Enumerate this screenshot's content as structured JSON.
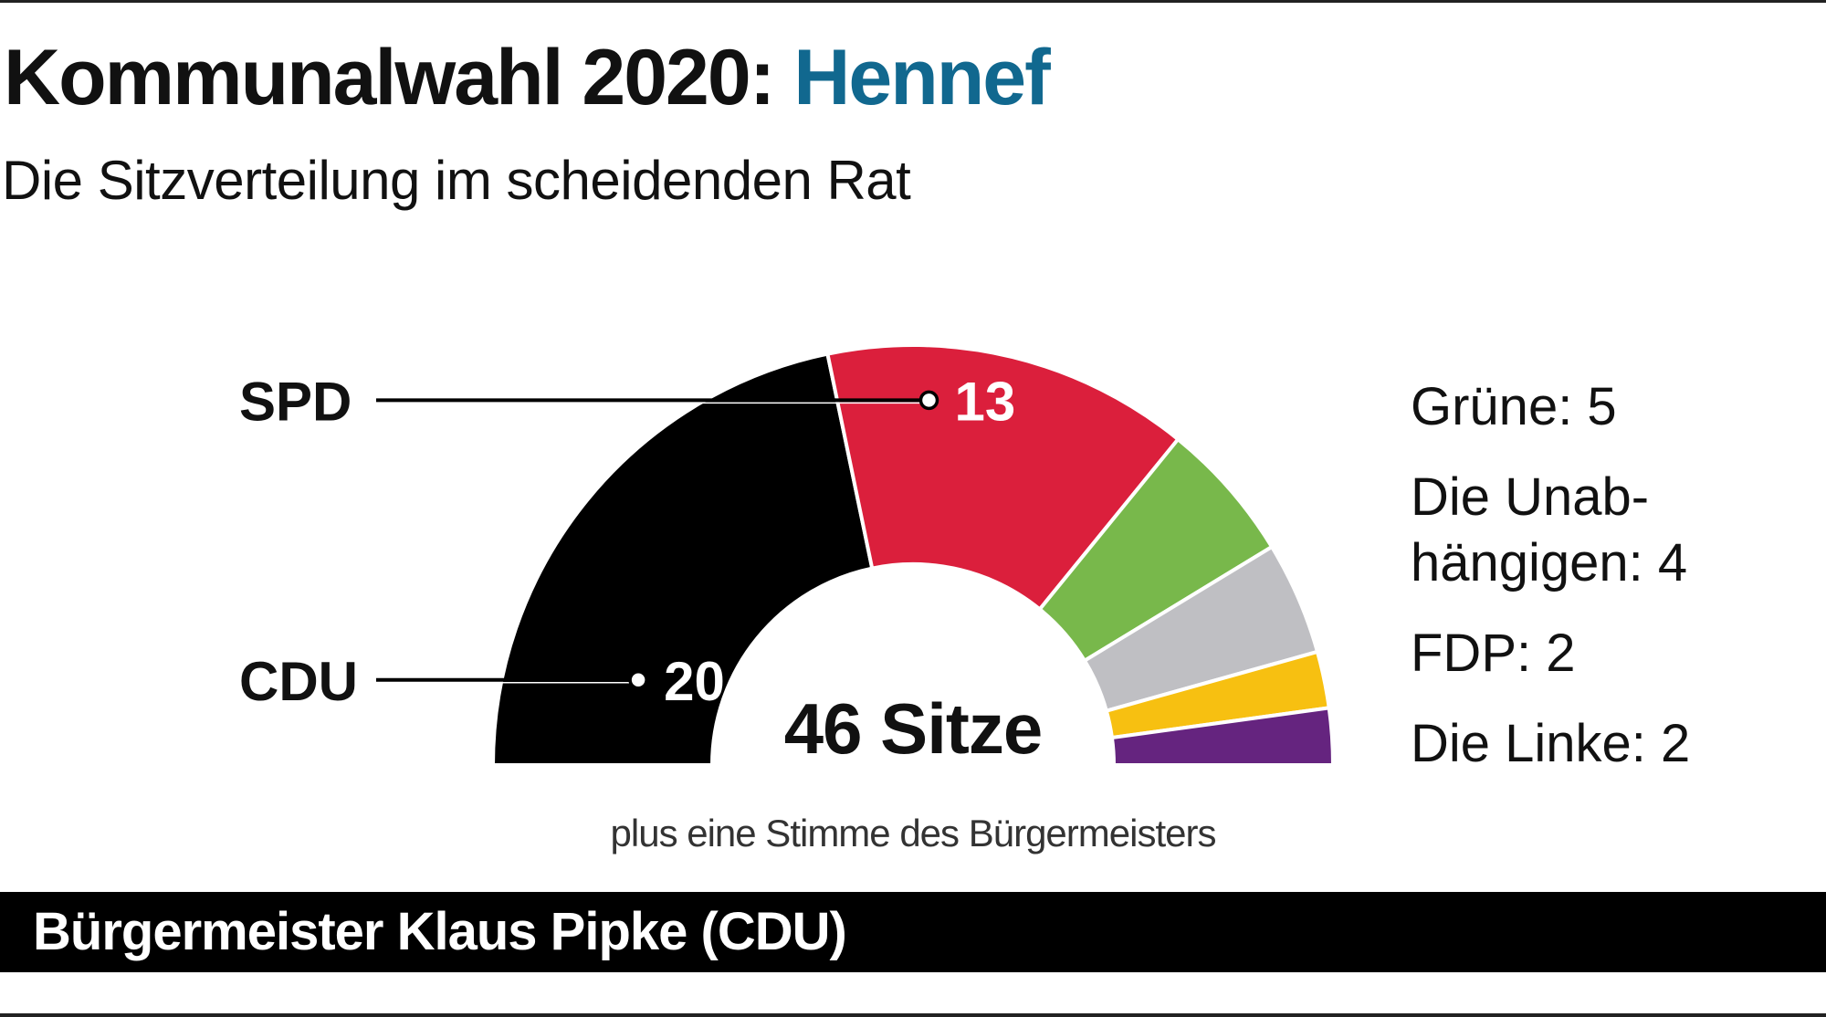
{
  "header": {
    "title_prefix": "Kommunalwahl 2020:",
    "title_place": "Hennef",
    "subtitle": "Die Sitzverteilung im scheidenden Rat"
  },
  "footer": {
    "mayor": "Bürgermeister Klaus Pipke (CDU)"
  },
  "colors": {
    "accent": "#11688f",
    "CDU": "#000000",
    "SPD": "#db1f3c",
    "Grüne": "#78b84b",
    "Die Unabhängigen": "#bfbfc3",
    "FDP": "#f7c011",
    "Die Linke": "#65247f"
  },
  "chart_data": {
    "type": "pie",
    "subtype": "parliament-semicircle",
    "title": "Die Sitzverteilung im scheidenden Rat",
    "total_label": "46 Sitze",
    "total": 46,
    "note": "plus eine Stimme des Bürgermeisters",
    "slices": [
      {
        "party": "CDU",
        "label": "CDU",
        "value": 20,
        "value_label": "20",
        "color": "#000000"
      },
      {
        "party": "SPD",
        "label": "SPD",
        "value": 13,
        "value_label": "13",
        "color": "#db1f3c"
      },
      {
        "party": "Grüne",
        "value": 5,
        "color": "#78b84b"
      },
      {
        "party": "Die Unabhängigen",
        "value": 4,
        "color": "#bfbfc3"
      },
      {
        "party": "FDP",
        "value": 2,
        "color": "#f7c011"
      },
      {
        "party": "Die Linke",
        "value": 2,
        "color": "#65247f"
      }
    ],
    "legend": [
      {
        "line1": "Grüne: 5"
      },
      {
        "line1": "Die Unab-",
        "line2": "hängigen: 4"
      },
      {
        "line1": "FDP: 2"
      },
      {
        "line1": "Die Linke: 2"
      }
    ]
  }
}
